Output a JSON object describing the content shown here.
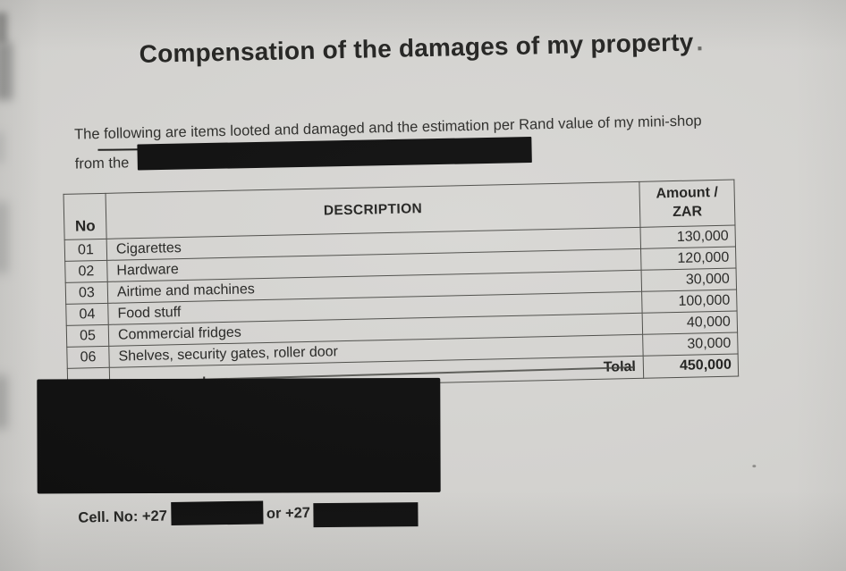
{
  "doc": {
    "title": "Compensation of the damages of my property",
    "title_period": ".",
    "intro": {
      "line1": "The following are items looted and damaged and the estimation per Rand value of my mini-shop",
      "line2_prefix": "from the"
    },
    "table": {
      "headers": {
        "no": "No",
        "description": "DESCRIPTION",
        "amount_line1": "Amount /",
        "amount_line2": "ZAR"
      },
      "rows": [
        {
          "no": "01",
          "description": "Cigarettes",
          "amount": "130,000"
        },
        {
          "no": "02",
          "description": "Hardware",
          "amount": "120,000"
        },
        {
          "no": "03",
          "description": "Airtime and machines",
          "amount": "30,000"
        },
        {
          "no": "04",
          "description": "Food stuff",
          "amount": "100,000"
        },
        {
          "no": "05",
          "description": "Commercial fridges",
          "amount": "40,000"
        },
        {
          "no": "06",
          "description": "Shelves, security gates, roller door",
          "amount": "30,000"
        }
      ],
      "total_label": "Tolal",
      "total_amount": "450,000"
    },
    "footer": {
      "cell_prefix": "Cell. No: +27",
      "or_separator": "or +27"
    },
    "colors": {
      "paper": "#d7d6d3",
      "ink": "#262624",
      "redaction": "#0b0b0b",
      "table_border": "#4b4b47"
    }
  }
}
